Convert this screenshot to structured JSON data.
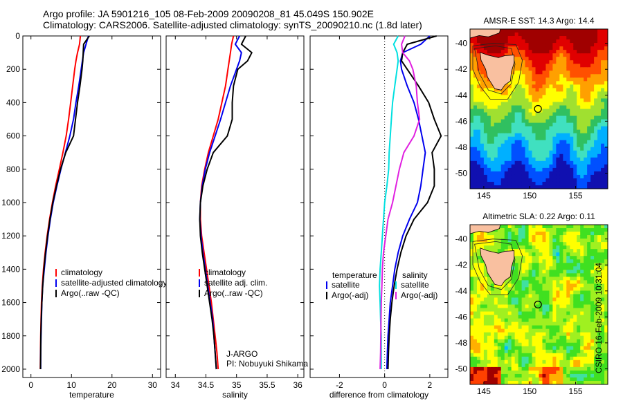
{
  "header": {
    "line1": "Argo profile: JA 5901216_105 08-Feb-2009 20090208_81 45.049S 150.902E",
    "line2": "Climatology: CARS2006. Satellite-adjusted climatology: synTS_20090210.nc (1.8d later)"
  },
  "stamp": "CSIRO 16-Feb-2009 10:31:04",
  "colors": {
    "red": "#ff0000",
    "blue": "#0000ee",
    "black": "#000000",
    "cyan": "#00e0e0",
    "magenta": "#e020e0",
    "land": "#f9c0a0",
    "marker": "#000000"
  },
  "chart_data": [
    {
      "type": "line",
      "xlabel": "temperature",
      "ylabel": "",
      "xlim": [
        -2,
        32
      ],
      "ylim": [
        0,
        2050
      ],
      "xticks": [
        0,
        10,
        20,
        30
      ],
      "yticks": [
        0,
        200,
        400,
        600,
        800,
        1000,
        1200,
        1400,
        1600,
        1800,
        2000
      ],
      "depth": [
        0,
        50,
        100,
        150,
        200,
        300,
        400,
        500,
        600,
        700,
        800,
        900,
        1000,
        1100,
        1200,
        1300,
        1400,
        1500,
        1600,
        1700,
        1800,
        1900,
        2000
      ],
      "series": [
        {
          "name": "climatology",
          "color": "red",
          "values": [
            12.2,
            12.0,
            11.5,
            11.1,
            10.8,
            10.3,
            9.8,
            9.3,
            8.7,
            7.9,
            7.0,
            6.1,
            5.3,
            4.6,
            4.0,
            3.5,
            3.1,
            2.8,
            2.6,
            2.5,
            2.4,
            2.35,
            2.3
          ]
        },
        {
          "name": "satellite-adjusted climatology",
          "color": "blue",
          "values": [
            14.2,
            13.6,
            13.0,
            12.7,
            12.4,
            11.8,
            11.1,
            10.5,
            9.6,
            8.5,
            7.4,
            6.4,
            5.5,
            4.8,
            4.2,
            3.7,
            3.3,
            2.9,
            2.7,
            2.6,
            2.5,
            2.4,
            2.4
          ]
        },
        {
          "name": "Argo(..raw -QC)",
          "color": "black",
          "values": [
            14.4,
            13.0,
            12.9,
            12.8,
            12.6,
            12.1,
            11.5,
            11.0,
            10.5,
            8.6,
            7.3,
            6.3,
            5.4,
            4.7,
            4.1,
            3.6,
            3.2,
            2.9,
            2.7,
            2.55,
            2.45,
            2.4,
            2.35
          ]
        }
      ]
    },
    {
      "type": "line",
      "xlabel": "salinity",
      "ylabel": "",
      "xlim": [
        33.85,
        36.1
      ],
      "ylim": [
        0,
        2050
      ],
      "xticks": [
        34,
        34.5,
        35,
        35.5,
        36
      ],
      "yticks": [
        0,
        200,
        400,
        600,
        800,
        1000,
        1200,
        1400,
        1600,
        1800,
        2000
      ],
      "depth": [
        0,
        50,
        100,
        150,
        200,
        300,
        400,
        500,
        600,
        700,
        800,
        900,
        1000,
        1100,
        1200,
        1300,
        1400,
        1500,
        1600,
        1700,
        1800,
        1900,
        2000
      ],
      "series": [
        {
          "name": "climatology",
          "color": "red",
          "values": [
            34.95,
            34.92,
            34.9,
            34.88,
            34.86,
            34.82,
            34.76,
            34.7,
            34.62,
            34.54,
            34.48,
            34.43,
            34.41,
            34.41,
            34.43,
            34.47,
            34.51,
            34.55,
            34.59,
            34.62,
            34.65,
            34.68,
            34.7
          ]
        },
        {
          "name": "satellite adj. clim.",
          "color": "blue",
          "values": [
            35.05,
            34.98,
            35.08,
            35.05,
            35.0,
            34.9,
            34.82,
            34.74,
            34.65,
            34.56,
            34.49,
            34.44,
            34.41,
            34.4,
            34.42,
            34.45,
            34.49,
            34.53,
            34.57,
            34.61,
            34.63,
            34.65,
            34.67
          ]
        },
        {
          "name": "Argo(..raw -QC)",
          "color": "black",
          "values": [
            35.15,
            35.08,
            35.25,
            35.18,
            35.02,
            34.95,
            34.93,
            34.93,
            34.85,
            34.62,
            34.52,
            34.45,
            34.41,
            34.4,
            34.41,
            34.44,
            34.48,
            34.52,
            34.56,
            34.6,
            34.63,
            34.65,
            34.67
          ]
        }
      ],
      "annotation": [
        "J-ARGO",
        "PI: Nobuyuki Shikama"
      ]
    },
    {
      "type": "line",
      "xlabel": "difference from climatology",
      "ylabel": "",
      "xlim": [
        -3.3,
        2.8
      ],
      "ylim": [
        0,
        2050
      ],
      "xticks": [
        -2,
        0,
        2
      ],
      "yticks": [
        0,
        200,
        400,
        600,
        800,
        1000,
        1200,
        1400,
        1600,
        1800,
        2000
      ],
      "legend_headers": [
        "temperature",
        "salinity"
      ],
      "depth": [
        0,
        50,
        100,
        150,
        200,
        300,
        400,
        500,
        600,
        700,
        800,
        900,
        1000,
        1100,
        1200,
        1300,
        1400,
        1500,
        1600,
        1700,
        1800,
        1900,
        2000
      ],
      "series": [
        {
          "name": "satellite",
          "group": "temperature",
          "color": "blue",
          "values": [
            2.0,
            1.6,
            0.8,
            0.7,
            0.75,
            1.0,
            1.3,
            1.5,
            1.65,
            1.8,
            1.7,
            1.6,
            1.45,
            1.1,
            0.8,
            0.6,
            0.45,
            0.35,
            0.25,
            0.2,
            0.15,
            0.12,
            0.1
          ]
        },
        {
          "name": "Argo(-adj)",
          "group": "temperature",
          "color": "black",
          "values": [
            2.3,
            1.0,
            0.8,
            0.75,
            1.0,
            1.5,
            1.95,
            2.2,
            2.5,
            2.1,
            2.2,
            2.2,
            1.9,
            1.3,
            0.95,
            0.72,
            0.55,
            0.42,
            0.32,
            0.25,
            0.2,
            0.17,
            0.15
          ]
        },
        {
          "name": "satellite",
          "group": "salinity",
          "color": "cyan",
          "values": [
            0.6,
            0.4,
            0.55,
            0.6,
            0.55,
            0.45,
            0.35,
            0.3,
            0.25,
            0.2,
            0.18,
            0.1,
            0.0,
            -0.05,
            -0.1,
            -0.15,
            -0.2,
            -0.23,
            -0.2,
            -0.18,
            -0.15,
            -0.15,
            -0.15
          ]
        },
        {
          "name": "Argo(-adj)",
          "group": "salinity",
          "color": "magenta",
          "values": [
            0.9,
            0.75,
            0.8,
            1.1,
            1.25,
            1.4,
            1.45,
            1.55,
            1.3,
            0.85,
            0.65,
            0.5,
            0.35,
            0.15,
            0.05,
            -0.05,
            -0.1,
            -0.12,
            -0.15,
            -0.16,
            -0.17,
            -0.18,
            -0.2
          ]
        }
      ]
    },
    {
      "type": "heatmap",
      "title": "AMSR-E SST: 14.3  Argo: 14.4",
      "xlim": [
        143.5,
        158.5
      ],
      "ylim": [
        -51.2,
        -38.9
      ],
      "xticks": [
        145,
        150,
        155
      ],
      "yticks": [
        -40,
        -42,
        -44,
        -46,
        -48,
        -50
      ],
      "marker": {
        "lon": 150.9,
        "lat": -45.05
      },
      "colorscale": [
        "#1010b0",
        "#0050ff",
        "#00b0ff",
        "#40e0c0",
        "#30c060",
        "#a0e030",
        "#ffff00",
        "#ffa000",
        "#ff5000",
        "#e00000",
        "#a00000"
      ]
    },
    {
      "type": "heatmap",
      "title": "Altimetric SLA: 0.22  Argo: 0.11",
      "xlim": [
        143.5,
        158.5
      ],
      "ylim": [
        -51.2,
        -38.9
      ],
      "xticks": [
        145,
        150,
        155
      ],
      "yticks": [
        -40,
        -42,
        -44,
        -46,
        -48,
        -50
      ],
      "marker": {
        "lon": 150.9,
        "lat": -45.05
      },
      "colorscale": [
        "#0060ff",
        "#00c0ff",
        "#40e0a0",
        "#40e020",
        "#a0f020",
        "#ffff00",
        "#ffb000",
        "#ff4000",
        "#a00000"
      ]
    }
  ]
}
